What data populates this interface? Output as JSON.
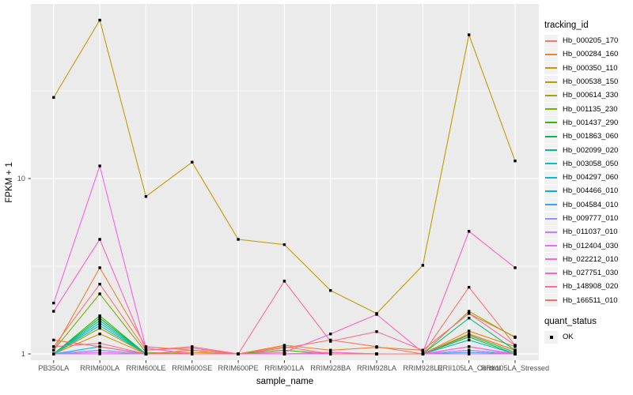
{
  "figure": {
    "y_axis": {
      "title": "FPKM + 1"
    },
    "x_axis": {
      "title": "sample_name"
    },
    "legend": {
      "tracking_title": "tracking_id",
      "quant_title": "quant_status",
      "quant_ok_label": "OK"
    }
  },
  "chart_data": {
    "type": "line",
    "title": "",
    "xlabel": "sample_name",
    "ylabel": "FPKM + 1",
    "y_scale": "log10",
    "y_tick_labels": [
      "1",
      "10"
    ],
    "y_tick_values": [
      1,
      10
    ],
    "y_minor_values": [
      3.1623,
      31.623
    ],
    "ylim": [
      0.97,
      95
    ],
    "grid": true,
    "panel_bg": "#EBEBEB",
    "grid_color": "#FFFFFF",
    "point_color": "#000000",
    "point_shape": "square",
    "point_status": "OK",
    "legend_position": "right",
    "x_categories": [
      "PB350LA",
      "RRIM600LA",
      "RRIM600LE",
      "RRIM600SE",
      "RRIM600PE",
      "RRIM901LA",
      "RRIM928BA",
      "RRIM928LA",
      "RRIM928LE",
      "RRII105LA_Control",
      "RRII105LA_Stressed"
    ],
    "series": [
      {
        "name": "Hb_000205_170",
        "color": "#F8766D",
        "values": [
          1.1,
          2.5,
          1.05,
          1.1,
          1.0,
          1.08,
          1.2,
          1.1,
          1.0,
          2.4,
          1.12
        ]
      },
      {
        "name": "Hb_000284_160",
        "color": "#EA8331",
        "values": [
          1.05,
          3.1,
          1.1,
          1.05,
          1.0,
          1.12,
          1.05,
          1.09,
          1.05,
          1.7,
          1.25
        ]
      },
      {
        "name": "Hb_000350_110",
        "color": "#D89000",
        "values": [
          1.0,
          1.3,
          1.0,
          1.02,
          1.0,
          1.0,
          1.02,
          1.0,
          1.0,
          1.35,
          1.1
        ]
      },
      {
        "name": "Hb_000538_150",
        "color": "#C09B00",
        "values": [
          29,
          80,
          7.9,
          12.4,
          4.5,
          4.2,
          2.3,
          1.7,
          3.2,
          66,
          12.6
        ]
      },
      {
        "name": "Hb_000614_330",
        "color": "#A3A500",
        "values": [
          1.0,
          1.4,
          1.0,
          1.0,
          1.0,
          1.0,
          1.0,
          1.0,
          1.0,
          1.75,
          1.24
        ]
      },
      {
        "name": "Hb_001135_230",
        "color": "#7CAE00",
        "values": [
          1.05,
          2.2,
          1.02,
          1.0,
          1.0,
          1.0,
          1.0,
          1.0,
          1.0,
          1.3,
          1.05
        ]
      },
      {
        "name": "Hb_001437_290",
        "color": "#39B600",
        "values": [
          1.0,
          1.65,
          1.0,
          1.0,
          1.0,
          1.05,
          1.0,
          1.0,
          1.0,
          1.28,
          1.02
        ]
      },
      {
        "name": "Hb_001863_060",
        "color": "#00BB4E",
        "values": [
          1.0,
          1.6,
          1.0,
          1.0,
          1.0,
          1.0,
          1.0,
          1.0,
          1.0,
          1.25,
          1.0
        ]
      },
      {
        "name": "Hb_002099_020",
        "color": "#00C087",
        "values": [
          1.0,
          1.55,
          1.0,
          1.0,
          1.0,
          1.0,
          1.0,
          1.0,
          1.0,
          1.6,
          1.05
        ]
      },
      {
        "name": "Hb_003058_050",
        "color": "#00C0B8",
        "values": [
          1.0,
          1.5,
          1.0,
          1.0,
          1.0,
          1.0,
          1.0,
          1.0,
          1.0,
          1.2,
          1.0
        ]
      },
      {
        "name": "Hb_004297_060",
        "color": "#00BCD8",
        "values": [
          1.0,
          1.45,
          1.0,
          1.0,
          1.0,
          1.0,
          1.0,
          1.0,
          1.0,
          1.1,
          1.0
        ]
      },
      {
        "name": "Hb_004466_010",
        "color": "#00B0F6",
        "values": [
          1.0,
          1.1,
          1.0,
          1.0,
          1.0,
          1.0,
          1.0,
          1.0,
          1.0,
          1.05,
          1.0
        ]
      },
      {
        "name": "Hb_004584_010",
        "color": "#35A2FF",
        "values": [
          1.0,
          1.05,
          1.0,
          1.0,
          1.0,
          1.0,
          1.0,
          1.0,
          1.0,
          1.02,
          1.0
        ]
      },
      {
        "name": "Hb_009777_010",
        "color": "#9590FF",
        "values": [
          1.0,
          1.05,
          1.0,
          1.0,
          1.0,
          1.0,
          1.0,
          1.0,
          1.0,
          1.0,
          1.0
        ]
      },
      {
        "name": "Hb_011037_010",
        "color": "#C77CFF",
        "values": [
          1.0,
          1.0,
          1.0,
          1.0,
          1.0,
          1.0,
          1.0,
          1.0,
          1.0,
          1.0,
          1.0
        ]
      },
      {
        "name": "Hb_012404_030",
        "color": "#E76BF3",
        "values": [
          1.0,
          1.02,
          1.0,
          1.0,
          1.0,
          1.0,
          1.0,
          1.0,
          1.0,
          1.05,
          1.0
        ]
      },
      {
        "name": "Hb_022212_010",
        "color": "#FA62DB",
        "values": [
          1.95,
          11.8,
          1.08,
          1.0,
          1.0,
          1.0,
          1.02,
          1.0,
          1.0,
          1.1,
          1.0
        ]
      },
      {
        "name": "Hb_027751_030",
        "color": "#FF62BC",
        "values": [
          1.75,
          4.5,
          1.05,
          1.08,
          1.0,
          1.02,
          1.3,
          1.68,
          1.02,
          5.0,
          3.1
        ]
      },
      {
        "name": "Hb_148908_020",
        "color": "#FF6A98",
        "values": [
          1.1,
          1.15,
          1.0,
          1.0,
          1.0,
          2.6,
          1.18,
          1.34,
          1.05,
          1.7,
          1.12
        ]
      },
      {
        "name": "Hb_166511_010",
        "color": "#FF6C67",
        "values": [
          1.2,
          1.1,
          1.0,
          1.05,
          1.0,
          1.1,
          1.0,
          1.0,
          1.0,
          1.3,
          1.05
        ]
      }
    ]
  }
}
